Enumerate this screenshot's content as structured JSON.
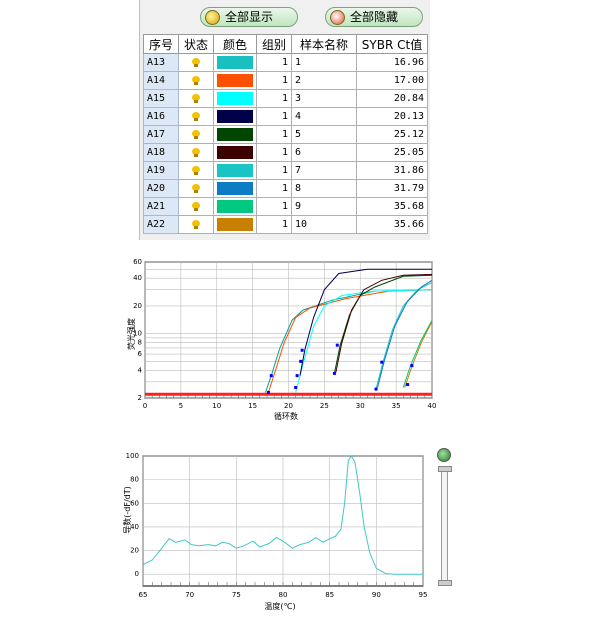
{
  "buttons": {
    "show_all": "全部显示",
    "hide_all": "全部隐藏"
  },
  "table": {
    "headers": [
      "序号",
      "状态",
      "颜色",
      "组别",
      "样本名称",
      "SYBR Ct值"
    ],
    "rows": [
      {
        "id": "A13",
        "color": "#19c0c0",
        "group": "1",
        "name": "1",
        "ct": "16.96"
      },
      {
        "id": "A14",
        "color": "#ff4f00",
        "group": "1",
        "name": "2",
        "ct": "17.00"
      },
      {
        "id": "A15",
        "color": "#00ffff",
        "group": "1",
        "name": "3",
        "ct": "20.84"
      },
      {
        "id": "A16",
        "color": "#000048",
        "group": "1",
        "name": "4",
        "ct": "20.13"
      },
      {
        "id": "A17",
        "color": "#004600",
        "group": "1",
        "name": "5",
        "ct": "25.12"
      },
      {
        "id": "A18",
        "color": "#3c0000",
        "group": "1",
        "name": "6",
        "ct": "25.05"
      },
      {
        "id": "A19",
        "color": "#1ac4c4",
        "group": "1",
        "name": "7",
        "ct": "31.86"
      },
      {
        "id": "A20",
        "color": "#0c7cc4",
        "group": "1",
        "name": "8",
        "ct": "31.79"
      },
      {
        "id": "A21",
        "color": "#00c880",
        "group": "1",
        "name": "9",
        "ct": "35.68"
      },
      {
        "id": "A22",
        "color": "#c88000",
        "group": "1",
        "name": "10",
        "ct": "35.66"
      }
    ]
  },
  "chart_data": [
    {
      "type": "line",
      "xlabel": "循环数",
      "ylabel": "荧光强度",
      "xlim": [
        0,
        40
      ],
      "ylim": [
        2,
        60
      ],
      "yscale": "log",
      "x_ticks": [
        0,
        5,
        10,
        15,
        20,
        25,
        30,
        35,
        40
      ],
      "y_ticks": [
        2,
        4,
        6,
        8,
        10,
        20,
        40,
        60
      ],
      "y_tick_labels": [
        "2",
        "4",
        "6",
        "8",
        "10",
        "20",
        "40",
        "60"
      ],
      "grid": true,
      "threshold": 2.2,
      "series": [
        {
          "color": "#00a0a0",
          "points": [
            [
              16.8,
              2.3
            ],
            [
              17.6,
              3.5
            ],
            [
              18.8,
              7
            ],
            [
              20.5,
              14
            ],
            [
              22,
              18
            ],
            [
              26,
              23
            ],
            [
              32,
              29
            ],
            [
              40,
              30
            ]
          ]
        },
        {
          "color": "#ff4f00",
          "points": [
            [
              17.2,
              2.3
            ],
            [
              18,
              3.6
            ],
            [
              19.4,
              8
            ],
            [
              21,
              15
            ],
            [
              23,
              19
            ],
            [
              28,
              24
            ],
            [
              34,
              29
            ],
            [
              40,
              30
            ]
          ]
        },
        {
          "color": "#00ffff",
          "points": [
            [
              21,
              2.3
            ],
            [
              22,
              4.6
            ],
            [
              23.5,
              12
            ],
            [
              25,
              20
            ],
            [
              27.5,
              26
            ],
            [
              32,
              29
            ],
            [
              40,
              30
            ]
          ]
        },
        {
          "color": "#000048",
          "points": [
            [
              21.6,
              3.5
            ],
            [
              22.3,
              6.8
            ],
            [
              23.5,
              15
            ],
            [
              25,
              30
            ],
            [
              27,
              45
            ],
            [
              31,
              50
            ],
            [
              40,
              50
            ]
          ]
        },
        {
          "color": "#004600",
          "points": [
            [
              26.4,
              3.7
            ],
            [
              27.2,
              7.5
            ],
            [
              28.5,
              16
            ],
            [
              30,
              26
            ],
            [
              32,
              32
            ],
            [
              36,
              42
            ],
            [
              40,
              43
            ]
          ]
        },
        {
          "color": "#3c0000",
          "points": [
            [
              26.6,
              3.8
            ],
            [
              27.4,
              7.8
            ],
            [
              28.8,
              18
            ],
            [
              30.5,
              30
            ],
            [
              33,
              38
            ],
            [
              36,
              43
            ],
            [
              40,
              44
            ]
          ]
        },
        {
          "color": "#1ac4c4",
          "points": [
            [
              32.2,
              2.5
            ],
            [
              33.2,
              5
            ],
            [
              34.5,
              11
            ],
            [
              36,
              20
            ],
            [
              38,
              30
            ],
            [
              40,
              36
            ]
          ]
        },
        {
          "color": "#0c7cc4",
          "points": [
            [
              32.4,
              2.6
            ],
            [
              33.4,
              5.2
            ],
            [
              34.8,
              12
            ],
            [
              36.5,
              22
            ],
            [
              38.5,
              32
            ],
            [
              40,
              38
            ]
          ]
        },
        {
          "color": "#00c880",
          "points": [
            [
              36,
              2.6
            ],
            [
              37,
              4.5
            ],
            [
              38.5,
              8.5
            ],
            [
              40,
              14
            ]
          ]
        },
        {
          "color": "#c88000",
          "points": [
            [
              36.2,
              2.6
            ],
            [
              37.2,
              4.4
            ],
            [
              38.6,
              8.3
            ],
            [
              40,
              13.5
            ]
          ]
        }
      ],
      "markers": [
        [
          17.2,
          2.3
        ],
        [
          17.6,
          3.5
        ],
        [
          21,
          2.6
        ],
        [
          21.2,
          3.5
        ],
        [
          21.7,
          5
        ],
        [
          21.9,
          6.6
        ],
        [
          26.4,
          3.7
        ],
        [
          26.8,
          7.5
        ],
        [
          32.2,
          2.5
        ],
        [
          33.0,
          4.9
        ],
        [
          36.6,
          2.8
        ],
        [
          37.2,
          4.5
        ]
      ]
    },
    {
      "type": "line",
      "xlabel": "温度(℃)",
      "ylabel": "导数(-dF/dT)",
      "xlim": [
        65,
        95
      ],
      "ylim": [
        -10,
        100
      ],
      "x_ticks": [
        65,
        70,
        75,
        80,
        85,
        90,
        95
      ],
      "y_ticks": [
        0,
        20,
        40,
        60,
        80,
        100
      ],
      "grid": true,
      "series": [
        {
          "color": "#40c8c8",
          "points": [
            [
              65,
              8
            ],
            [
              66,
              12
            ],
            [
              67,
              22
            ],
            [
              67.8,
              30
            ],
            [
              68.5,
              27
            ],
            [
              69.5,
              29
            ],
            [
              70.2,
              25
            ],
            [
              71,
              24
            ],
            [
              72,
              25
            ],
            [
              72.8,
              24
            ],
            [
              73.5,
              27
            ],
            [
              74.2,
              26
            ],
            [
              75,
              22
            ],
            [
              75.8,
              24
            ],
            [
              76.8,
              28
            ],
            [
              77.5,
              23
            ],
            [
              78.5,
              26
            ],
            [
              79.3,
              31
            ],
            [
              80,
              28
            ],
            [
              81,
              22
            ],
            [
              81.8,
              25
            ],
            [
              82.8,
              27
            ],
            [
              83.5,
              31
            ],
            [
              84.3,
              27
            ],
            [
              85,
              30
            ],
            [
              85.6,
              32
            ],
            [
              86.2,
              38
            ],
            [
              86.6,
              60
            ],
            [
              87,
              96
            ],
            [
              87.3,
              100
            ],
            [
              87.7,
              95
            ],
            [
              88.2,
              70
            ],
            [
              88.7,
              40
            ],
            [
              89.3,
              18
            ],
            [
              90,
              5
            ],
            [
              91,
              0.5
            ],
            [
              92,
              0
            ],
            [
              95,
              0
            ]
          ]
        }
      ]
    }
  ]
}
